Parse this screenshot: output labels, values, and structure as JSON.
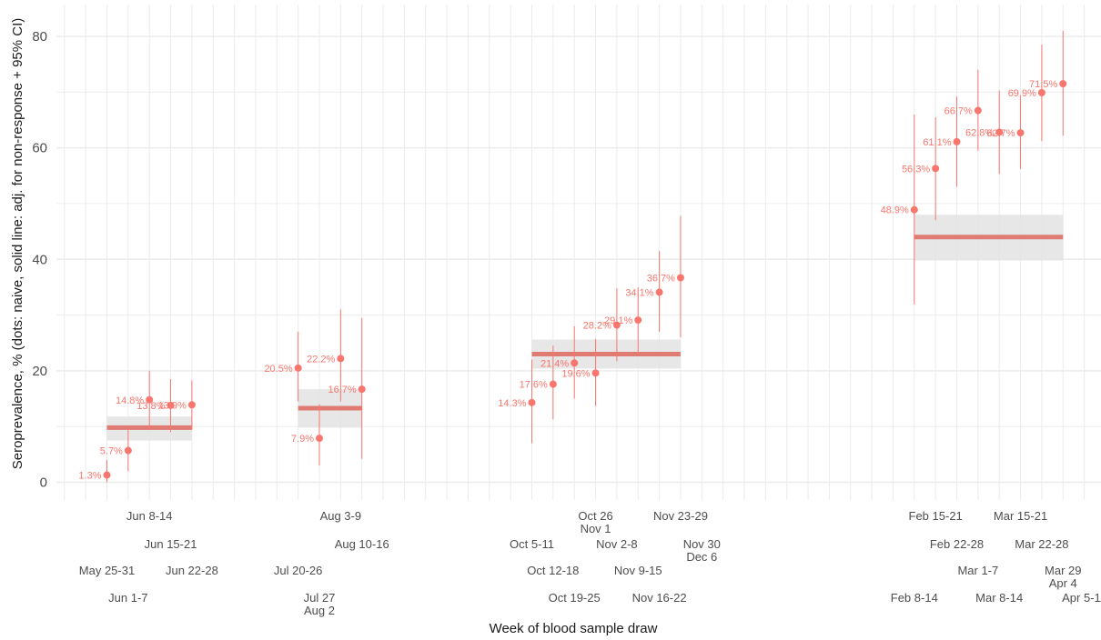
{
  "chart_data": {
    "type": "scatter",
    "xlabel": "Week of blood sample draw",
    "ylabel": "Seroprevalence, % (dots: naive, solid line: adj. for non-response + 95% CI)",
    "ylim": [
      -3,
      85
    ],
    "yticks": [
      0,
      20,
      40,
      60,
      80
    ],
    "grid": true,
    "colors": {
      "points": "#f8766d",
      "adjusted_line": "#e07b73",
      "ci_band": "#e3e3e3",
      "grid": "#ebebeb",
      "text": "#4d4d4d"
    },
    "weeks": [
      {
        "label": "May 25-31",
        "level": 3
      },
      {
        "label": "Jun 1-7",
        "level": 4
      },
      {
        "label": "Jun 8-14",
        "level": 1
      },
      {
        "label": "Jun 15-21",
        "level": 2
      },
      {
        "label": "Jun 22-28",
        "level": 3
      },
      {
        "label": "",
        "level": 0
      },
      {
        "label": "",
        "level": 0
      },
      {
        "label": "",
        "level": 0
      },
      {
        "label": "",
        "level": 0
      },
      {
        "label": "Jul 20-26",
        "level": 3
      },
      {
        "label": "Jul 27\nAug 2",
        "level": 4
      },
      {
        "label": "Aug 3-9",
        "level": 1
      },
      {
        "label": "Aug 10-16",
        "level": 2
      },
      {
        "label": "",
        "level": 0
      },
      {
        "label": "",
        "level": 0
      },
      {
        "label": "",
        "level": 0
      },
      {
        "label": "",
        "level": 0
      },
      {
        "label": "",
        "level": 0
      },
      {
        "label": "",
        "level": 0
      },
      {
        "label": "",
        "level": 0
      },
      {
        "label": "Oct 5-11",
        "level": 2
      },
      {
        "label": "Oct 12-18",
        "level": 3
      },
      {
        "label": "Oct 19-25",
        "level": 4
      },
      {
        "label": "Oct 26\nNov 1",
        "level": 1
      },
      {
        "label": "Nov 2-8",
        "level": 2
      },
      {
        "label": "Nov 9-15",
        "level": 3
      },
      {
        "label": "Nov 16-22",
        "level": 4
      },
      {
        "label": "Nov 23-29",
        "level": 1
      },
      {
        "label": "Nov 30\nDec 6",
        "level": 2
      },
      {
        "label": "",
        "level": 0
      },
      {
        "label": "",
        "level": 0
      },
      {
        "label": "",
        "level": 0
      },
      {
        "label": "",
        "level": 0
      },
      {
        "label": "",
        "level": 0
      },
      {
        "label": "",
        "level": 0
      },
      {
        "label": "",
        "level": 0
      },
      {
        "label": "",
        "level": 0
      },
      {
        "label": "",
        "level": 0
      },
      {
        "label": "Feb 8-14",
        "level": 4
      },
      {
        "label": "Feb 15-21",
        "level": 1
      },
      {
        "label": "Feb 22-28",
        "level": 2
      },
      {
        "label": "Mar 1-7",
        "level": 3
      },
      {
        "label": "Mar 8-14",
        "level": 4
      },
      {
        "label": "Mar 15-21",
        "level": 1
      },
      {
        "label": "Mar 22-28",
        "level": 2
      },
      {
        "label": "Mar 29\nApr 4",
        "level": 3
      },
      {
        "label": "Apr 5-11",
        "level": 4
      }
    ],
    "points": [
      {
        "week": 0,
        "value": 1.3,
        "label": "1.3%",
        "lo": 0.0,
        "hi": 4.0
      },
      {
        "week": 1,
        "value": 5.7,
        "label": "5.7%",
        "lo": 2.0,
        "hi": 9.5
      },
      {
        "week": 2,
        "value": 14.8,
        "label": "14.8%",
        "lo": 9.5,
        "hi": 20.0
      },
      {
        "week": 3,
        "value": 13.8,
        "label": "13.8%",
        "lo": 9.0,
        "hi": 18.5
      },
      {
        "week": 4,
        "value": 13.9,
        "label": "13.9%",
        "lo": 9.5,
        "hi": 18.3
      },
      {
        "week": 9,
        "value": 20.5,
        "label": "20.5%",
        "lo": 14.5,
        "hi": 27.0
      },
      {
        "week": 10,
        "value": 7.9,
        "label": "7.9%",
        "lo": 3.0,
        "hi": 14.0
      },
      {
        "week": 11,
        "value": 22.2,
        "label": "22.2%",
        "lo": 14.5,
        "hi": 31.0
      },
      {
        "week": 12,
        "value": 16.7,
        "label": "16.7%",
        "lo": 4.2,
        "hi": 29.5
      },
      {
        "week": 20,
        "value": 14.3,
        "label": "14.3%",
        "lo": 7.0,
        "hi": 22.0
      },
      {
        "week": 21,
        "value": 17.6,
        "label": "17.6%",
        "lo": 11.3,
        "hi": 24.5
      },
      {
        "week": 22,
        "value": 21.4,
        "label": "21.4%",
        "lo": 15.0,
        "hi": 28.0
      },
      {
        "week": 23,
        "value": 19.6,
        "label": "19.6%",
        "lo": 13.7,
        "hi": 25.7
      },
      {
        "week": 24,
        "value": 28.2,
        "label": "28.2%",
        "lo": 21.7,
        "hi": 34.8
      },
      {
        "week": 25,
        "value": 29.1,
        "label": "29.1%",
        "lo": 23.0,
        "hi": 35.0
      },
      {
        "week": 26,
        "value": 34.1,
        "label": "34.1%",
        "lo": 27.0,
        "hi": 41.5
      },
      {
        "week": 27,
        "value": 36.7,
        "label": "36.7%",
        "lo": 26.0,
        "hi": 47.8
      },
      {
        "week": 38,
        "value": 48.9,
        "label": "48.9%",
        "lo": 31.9,
        "hi": 66.0
      },
      {
        "week": 39,
        "value": 56.3,
        "label": "56.3%",
        "lo": 47.0,
        "hi": 65.5
      },
      {
        "week": 40,
        "value": 61.1,
        "label": "61.1%",
        "lo": 53.0,
        "hi": 69.2
      },
      {
        "week": 41,
        "value": 66.7,
        "label": "66.7%",
        "lo": 59.5,
        "hi": 74.0
      },
      {
        "week": 42,
        "value": 62.8,
        "label": "62.8%",
        "lo": 55.3,
        "hi": 70.3
      },
      {
        "week": 43,
        "value": 62.7,
        "label": "62.7%",
        "lo": 56.2,
        "hi": 69.3
      },
      {
        "week": 44,
        "value": 69.9,
        "label": "69.9%",
        "lo": 61.2,
        "hi": 78.5
      },
      {
        "week": 45,
        "value": 71.5,
        "label": "71.5%",
        "lo": 62.2,
        "hi": 81.0
      }
    ],
    "adjusted": [
      {
        "from_week": 0,
        "to_week": 4,
        "value": 9.8,
        "lo": 7.5,
        "hi": 11.8
      },
      {
        "from_week": 9,
        "to_week": 12,
        "value": 13.3,
        "lo": 9.8,
        "hi": 16.7
      },
      {
        "from_week": 20,
        "to_week": 27,
        "value": 23.0,
        "lo": 20.4,
        "hi": 25.6
      },
      {
        "from_week": 38,
        "to_week": 45,
        "value": 44.0,
        "lo": 39.8,
        "hi": 48.0
      }
    ]
  }
}
